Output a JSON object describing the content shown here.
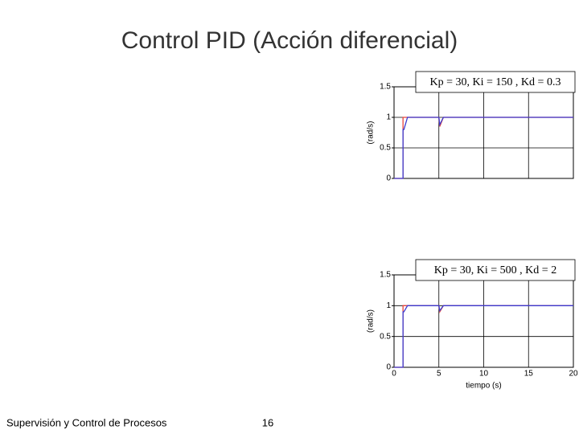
{
  "title": "Control PID (Acción diferencial)",
  "footer": {
    "course": "Supervisión y Control de Procesos",
    "page": "16"
  },
  "chart_data": [
    {
      "type": "line",
      "ylabel": "(rad/s)",
      "annotation": "Kp = 30, Ki = 150 , Kd = 0.3",
      "x": [
        0,
        1,
        1,
        1.1,
        1.5,
        5,
        5.1,
        5.5,
        20
      ],
      "series": [
        {
          "color": "#e8453c",
          "values": [
            0,
            0,
            1,
            1,
            1,
            1,
            0.85,
            1,
            1
          ]
        },
        {
          "color": "#3b3bd0",
          "values": [
            0,
            0,
            0.8,
            0.8,
            1,
            1,
            0.88,
            1,
            1
          ]
        }
      ],
      "xlim": [
        0,
        20
      ],
      "xticks": [
        0,
        5,
        10,
        15,
        20
      ],
      "show_xtick_labels": false,
      "ylim": [
        0,
        1.5
      ],
      "yticks": [
        0,
        0.5,
        1,
        1.5
      ],
      "grid": true
    },
    {
      "type": "line",
      "ylabel": "(rad/s)",
      "xlabel": "tiempo (s)",
      "annotation": "Kp = 30, Ki = 500 , Kd = 2",
      "x": [
        0,
        1,
        1,
        1.1,
        1.5,
        5,
        5.1,
        5.5,
        20
      ],
      "series": [
        {
          "color": "#e8453c",
          "values": [
            0,
            0,
            1,
            1,
            1,
            1,
            0.9,
            1,
            1
          ]
        },
        {
          "color": "#3b3bd0",
          "values": [
            0,
            0,
            0.9,
            0.9,
            1,
            1,
            0.92,
            1,
            1
          ]
        }
      ],
      "xlim": [
        0,
        20
      ],
      "xticks": [
        0,
        5,
        10,
        15,
        20
      ],
      "show_xtick_labels": true,
      "ylim": [
        0,
        1.5
      ],
      "yticks": [
        0,
        0.5,
        1,
        1.5
      ],
      "grid": true
    }
  ]
}
